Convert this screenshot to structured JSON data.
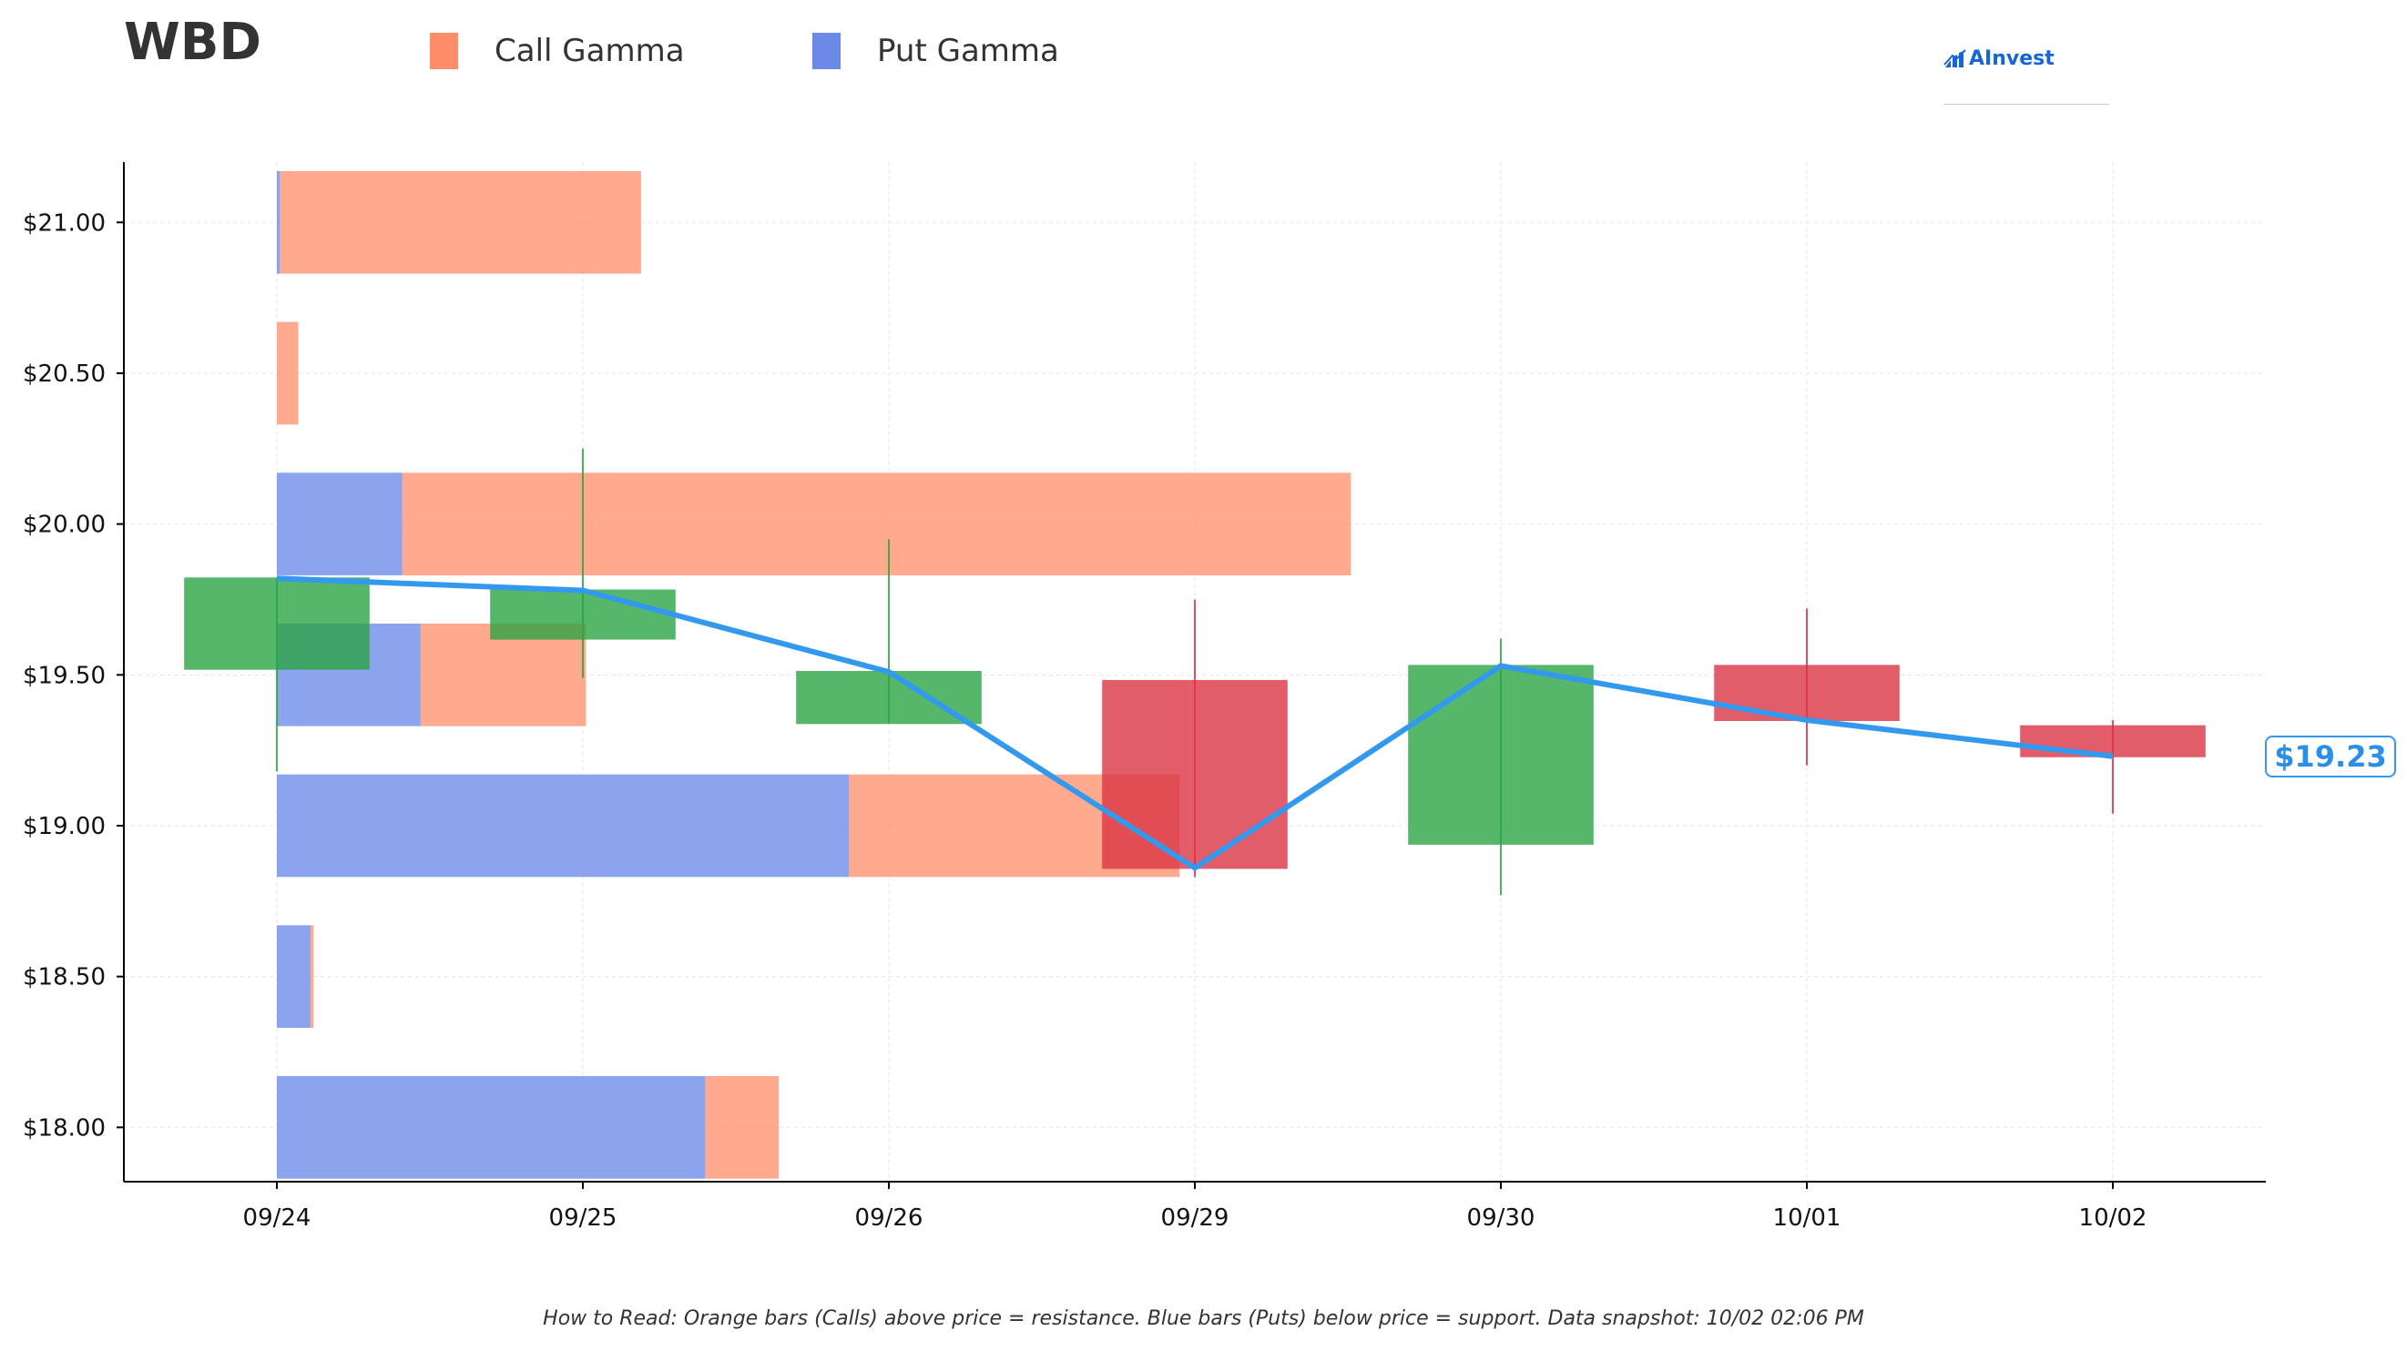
{
  "title": "WBD",
  "legend": [
    {
      "label": "Call Gamma",
      "color": "#ff8c69"
    },
    {
      "label": "Put Gamma",
      "color": "#6b8ae8"
    }
  ],
  "brand": "AInvest",
  "footer": "How to Read: Orange bars (Calls) above price = resistance. Blue bars (Puts) below price = support. Data snapshot: 10/02 02:06 PM",
  "current_price_label": "$19.23",
  "colors": {
    "call": "#ff8c69",
    "put": "#6b8ae8",
    "up": "#2ca444",
    "down": "#dc3545",
    "price_line": "#3399ee",
    "axis": "#000000",
    "grid": "#e6e6e6"
  },
  "chart_data": {
    "type": "candlestick",
    "categories": [
      "09/24",
      "09/25",
      "09/26",
      "09/29",
      "09/30",
      "10/01",
      "10/02"
    ],
    "y_tick_labels": [
      "$18.00",
      "$18.50",
      "$19.00",
      "$19.50",
      "$20.00",
      "$20.50",
      "$21.00"
    ],
    "y_ticks": [
      18.0,
      18.5,
      19.0,
      19.5,
      20.0,
      20.5,
      21.0
    ],
    "ylim": [
      17.82,
      21.2
    ],
    "xlim": [
      -0.5,
      6.5
    ],
    "candles": [
      {
        "date": "09/24",
        "open": 19.52,
        "high": 19.82,
        "low": 19.18,
        "close": 19.82
      },
      {
        "date": "09/25",
        "open": 19.62,
        "high": 20.25,
        "low": 19.49,
        "close": 19.78
      },
      {
        "date": "09/26",
        "open": 19.34,
        "high": 19.95,
        "low": 19.34,
        "close": 19.51
      },
      {
        "date": "09/29",
        "open": 19.48,
        "high": 19.75,
        "low": 18.83,
        "close": 18.86
      },
      {
        "date": "09/30",
        "open": 18.94,
        "high": 19.62,
        "low": 18.77,
        "close": 19.53
      },
      {
        "date": "10/01",
        "open": 19.53,
        "high": 19.72,
        "low": 19.2,
        "close": 19.35
      },
      {
        "date": "10/02",
        "open": 19.33,
        "high": 19.35,
        "low": 19.04,
        "close": 19.23
      }
    ],
    "price_line": [
      19.82,
      19.78,
      19.51,
      18.86,
      19.53,
      19.35,
      19.23
    ],
    "gamma_bars": [
      {
        "strike": 21.0,
        "put": 0.01,
        "call": 1.18
      },
      {
        "strike": 20.5,
        "put": 0.0,
        "call": 0.07
      },
      {
        "strike": 20.0,
        "put": 0.41,
        "call": 3.1
      },
      {
        "strike": 19.5,
        "put": 0.47,
        "call": 0.54
      },
      {
        "strike": 19.0,
        "put": 1.87,
        "call": 1.08
      },
      {
        "strike": 18.5,
        "put": 0.11,
        "call": 0.01
      },
      {
        "strike": 18.0,
        "put": 1.4,
        "call": 0.24
      }
    ]
  }
}
